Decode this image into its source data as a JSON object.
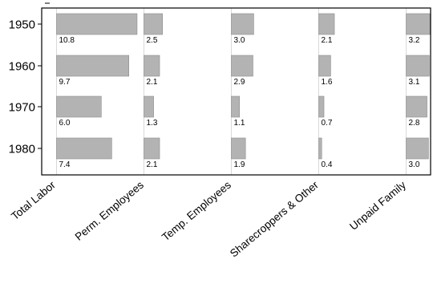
{
  "chart_data": {
    "type": "bar",
    "orientation": "horizontal",
    "layout": "small-multiples",
    "title": "",
    "xlabel": "",
    "ylabel": "",
    "years": [
      "1950",
      "1960",
      "1970",
      "1980"
    ],
    "categories": [
      "Total Labor",
      "Perm. Employees",
      "Temp. Employees",
      "Sharecroppers & Other",
      "Unpaid Family"
    ],
    "values": [
      [
        10.8,
        2.5,
        3.0,
        2.1,
        3.2
      ],
      [
        9.7,
        2.1,
        2.9,
        1.6,
        3.1
      ],
      [
        6.0,
        1.3,
        1.1,
        0.7,
        2.8
      ],
      [
        7.4,
        2.1,
        1.9,
        0.4,
        3.0
      ]
    ],
    "value_labels": [
      [
        "10.8",
        "2.5",
        "3.0",
        "2.1",
        "3.2"
      ],
      [
        "9.7",
        "2.1",
        "2.9",
        "1.6",
        "3.1"
      ],
      [
        "6.0",
        "1.3",
        "1.1",
        "0.7",
        "2.8"
      ],
      [
        "7.4",
        "2.1",
        "1.9",
        "0.4",
        "3.0"
      ]
    ],
    "bar_color": "#b3b3b3",
    "bar_edge_color": "#8c8c8c",
    "grid": true,
    "legend": "none"
  }
}
